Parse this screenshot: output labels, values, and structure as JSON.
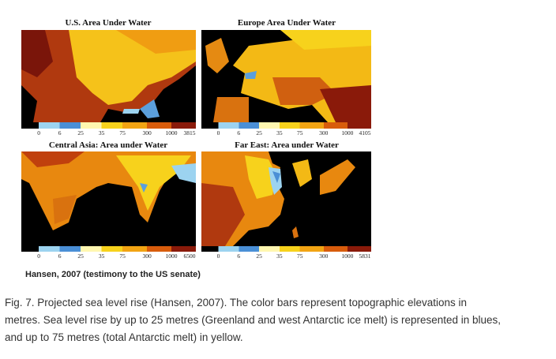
{
  "panels": [
    {
      "title": "U.S. Area Under Water",
      "ticks": [
        "0",
        "6",
        "25",
        "35",
        "75",
        "300",
        "1000",
        "3815"
      ]
    },
    {
      "title": "Europe Area Under Water",
      "ticks": [
        "0",
        "6",
        "25",
        "35",
        "75",
        "300",
        "1000",
        "4105"
      ]
    },
    {
      "title": "Central Asia: Area under Water",
      "ticks": [
        "0",
        "6",
        "25",
        "35",
        "75",
        "300",
        "1000",
        "6500"
      ]
    },
    {
      "title": "Far East: Area under Water",
      "ticks": [
        "0",
        "6",
        "25",
        "35",
        "75",
        "300",
        "1000",
        "5831"
      ]
    }
  ],
  "credit": "Hansen, 2007 (testimony to the US senate)",
  "caption": {
    "lines": [
      "Fig. 7. Projected sea level rise (Hansen, 2007). The color bars represent topographic elevations in",
      "metres. Sea level rise by up to 25 metres (Greenland and west Antarctic ice melt) is represented in blues,",
      "and up to 75 metres (total Antarctic melt) in yellow."
    ]
  }
}
